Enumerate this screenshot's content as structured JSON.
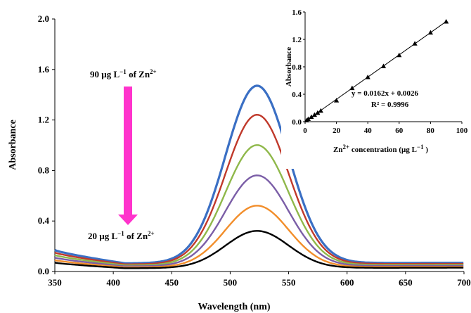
{
  "chart_data": [
    {
      "type": "line",
      "title": "",
      "xlabel": "Wavelength (nm)",
      "ylabel": "Absorbance",
      "xlim": [
        350,
        700
      ],
      "ylim": [
        0.0,
        2.0
      ],
      "x_ticks": [
        "350",
        "400",
        "450",
        "500",
        "550",
        "600",
        "650",
        "700"
      ],
      "y_ticks": [
        "0.0",
        "0.4",
        "0.8",
        "1.2",
        "1.6",
        "2.0"
      ],
      "grid": false,
      "legend": "none",
      "peak_wavelength": 523,
      "series": [
        {
          "color": "#3a6fc4",
          "peak": 1.47,
          "baseline_350": 0.17
        },
        {
          "color": "#c0392b",
          "peak": 1.24,
          "baseline_350": 0.15
        },
        {
          "color": "#8fb84a",
          "peak": 1.0,
          "baseline_350": 0.13
        },
        {
          "color": "#7b5ea7",
          "peak": 0.76,
          "baseline_350": 0.11
        },
        {
          "color": "#f28e2b",
          "peak": 0.52,
          "baseline_350": 0.09
        },
        {
          "color": "#000000",
          "peak": 0.32,
          "baseline_350": 0.07
        }
      ],
      "annotations": {
        "top": {
          "main": "90 µg L",
          "exp": "−1",
          "tail": " of Zn",
          "ion": "2+"
        },
        "bottom": {
          "main": "20 µg L",
          "exp": "−1",
          "tail": " of Zn",
          "ion": "2+"
        },
        "arrow_color": "#ff33cc"
      }
    },
    {
      "type": "scatter",
      "title": "",
      "xlabel": {
        "main": "Zn",
        "ion": "2+",
        "tail": " concentration (µg L",
        "exp": "−1",
        "close": " )"
      },
      "ylabel": "Absorbance",
      "xlim": [
        0,
        100
      ],
      "ylim": [
        0.0,
        1.6
      ],
      "x_ticks": [
        "0",
        "20",
        "40",
        "60",
        "80",
        "100"
      ],
      "y_ticks": [
        "0.0",
        "0.4",
        "0.8",
        "1.2",
        "1.6"
      ],
      "grid": false,
      "marker": "triangle",
      "x": [
        1,
        2,
        4,
        6,
        8,
        10,
        20,
        30,
        40,
        50,
        60,
        70,
        80,
        90
      ],
      "y": [
        0.02,
        0.04,
        0.07,
        0.1,
        0.13,
        0.16,
        0.31,
        0.49,
        0.65,
        0.81,
        0.97,
        1.14,
        1.3,
        1.46
      ],
      "fit": {
        "slope": 0.0162,
        "intercept": 0.0026
      },
      "equation": "y = 0.0162x + 0.0026",
      "r2": "R² = 0.9996"
    }
  ]
}
